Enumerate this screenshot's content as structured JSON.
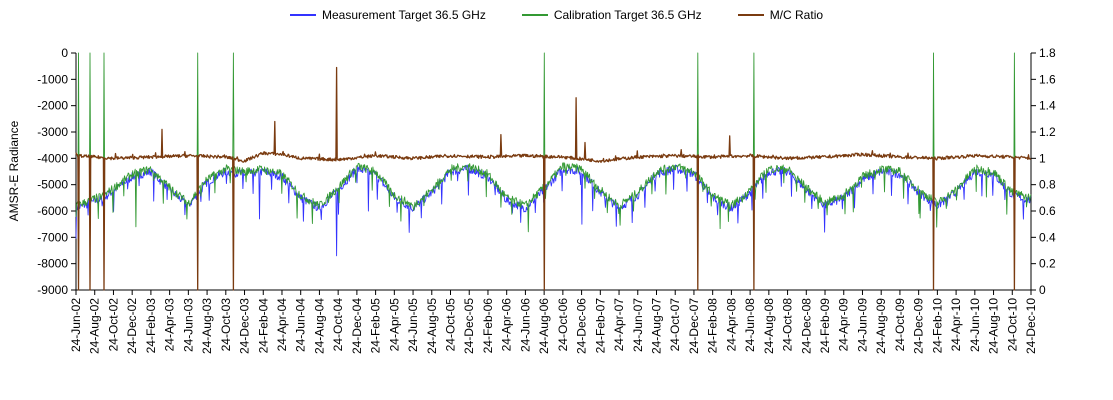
{
  "chart_data": {
    "type": "line",
    "ylabel": "AMSR-E Radiance",
    "y2label": "",
    "ylim": [
      -9000,
      0
    ],
    "y2lim": [
      0,
      1.8
    ],
    "yticks": [
      "0",
      "-1000",
      "-2000",
      "-3000",
      "-4000",
      "-5000",
      "-6000",
      "-7000",
      "-8000",
      "-9000"
    ],
    "y2ticks": [
      "1.8",
      "1.6",
      "1.4",
      "1.2",
      "1",
      "0.8",
      "0.6",
      "0.4",
      "0.2",
      "0"
    ],
    "x_tick_labels": [
      "24-Jun-02",
      "24-Aug-02",
      "24-Oct-02",
      "24-Dec-02",
      "24-Feb-03",
      "24-Apr-03",
      "24-Jun-03",
      "24-Aug-03",
      "24-Oct-03",
      "24-Dec-03",
      "24-Feb-04",
      "24-Apr-04",
      "24-Jun-04",
      "24-Aug-04",
      "24-Oct-04",
      "24-Dec-04",
      "24-Feb-05",
      "24-Apr-05",
      "24-Jun-05",
      "24-Aug-05",
      "24-Oct-05",
      "24-Dec-05",
      "24-Feb-06",
      "24-Apr-06",
      "24-Jun-06",
      "24-Aug-06",
      "24-Oct-06",
      "24-Dec-06",
      "24-Feb-07",
      "24-Apr-07",
      "24-Jun-07",
      "24-Aug-07",
      "24-Oct-07",
      "24-Dec-07",
      "24-Feb-08",
      "24-Apr-08",
      "24-Jun-08",
      "24-Aug-08",
      "24-Oct-08",
      "24-Dec-08",
      "24-Feb-09",
      "24-Apr-09",
      "24-Jun-09",
      "24-Aug-09",
      "24-Oct-09",
      "24-Dec-09",
      "24-Feb-10",
      "24-Apr-10",
      "24-Jun-10",
      "24-Aug-10",
      "24-Oct-10",
      "24-Dec-10"
    ],
    "grid": false,
    "legend_position": "top-center",
    "series": [
      {
        "name": "Measurement Target 36.5 GHz",
        "axis": "left",
        "color": "#3333ff",
        "baseline": [
          [
            0,
            -5900
          ],
          [
            1.5,
            -5500
          ],
          [
            3,
            -4700
          ],
          [
            4,
            -4500
          ],
          [
            5,
            -5200
          ],
          [
            6,
            -5800
          ],
          [
            7,
            -4900
          ],
          [
            8,
            -4500
          ],
          [
            9,
            -4600
          ],
          [
            10,
            -4500
          ],
          [
            11,
            -4700
          ],
          [
            12,
            -5500
          ],
          [
            13,
            -5900
          ],
          [
            14,
            -5200
          ],
          [
            15,
            -4400
          ],
          [
            16,
            -4600
          ],
          [
            17,
            -5500
          ],
          [
            18,
            -5900
          ],
          [
            19,
            -5300
          ],
          [
            20,
            -4500
          ],
          [
            21,
            -4400
          ],
          [
            22,
            -4700
          ],
          [
            23,
            -5600
          ],
          [
            24,
            -5900
          ],
          [
            25,
            -5200
          ],
          [
            26,
            -4400
          ],
          [
            27,
            -4500
          ],
          [
            28,
            -5300
          ],
          [
            29,
            -5900
          ],
          [
            30,
            -5400
          ],
          [
            31,
            -4600
          ],
          [
            32,
            -4400
          ],
          [
            33,
            -4600
          ],
          [
            34,
            -5500
          ],
          [
            35,
            -5900
          ],
          [
            36,
            -5300
          ],
          [
            37,
            -4500
          ],
          [
            38,
            -4500
          ],
          [
            39,
            -5200
          ],
          [
            40,
            -5800
          ],
          [
            41,
            -5500
          ],
          [
            42,
            -4800
          ],
          [
            43,
            -4500
          ],
          [
            44,
            -4600
          ],
          [
            45,
            -5300
          ],
          [
            46,
            -5800
          ],
          [
            47,
            -5300
          ],
          [
            48,
            -4500
          ],
          [
            49,
            -4600
          ],
          [
            50,
            -5400
          ],
          [
            51,
            -5600
          ]
        ],
        "spikes": [
          [
            13.9,
            -7700
          ],
          [
            27.0,
            -6500
          ],
          [
            9.8,
            -6300
          ],
          [
            15.6,
            -6000
          ]
        ]
      },
      {
        "name": "Calibration Target 36.5 GHz",
        "axis": "left",
        "color": "#339933",
        "baseline": [
          [
            0,
            -5800
          ],
          [
            1.5,
            -5400
          ],
          [
            3,
            -4600
          ],
          [
            4,
            -4400
          ],
          [
            5,
            -5100
          ],
          [
            6,
            -5700
          ],
          [
            7,
            -4800
          ],
          [
            8,
            -4400
          ],
          [
            9,
            -4500
          ],
          [
            10,
            -4400
          ],
          [
            11,
            -4600
          ],
          [
            12,
            -5400
          ],
          [
            13,
            -5800
          ],
          [
            14,
            -5100
          ],
          [
            15,
            -4300
          ],
          [
            16,
            -4500
          ],
          [
            17,
            -5400
          ],
          [
            18,
            -5800
          ],
          [
            19,
            -5200
          ],
          [
            20,
            -4400
          ],
          [
            21,
            -4300
          ],
          [
            22,
            -4600
          ],
          [
            23,
            -5500
          ],
          [
            24,
            -5800
          ],
          [
            25,
            -5100
          ],
          [
            26,
            -4300
          ],
          [
            27,
            -4400
          ],
          [
            28,
            -5200
          ],
          [
            29,
            -5800
          ],
          [
            30,
            -5300
          ],
          [
            31,
            -4500
          ],
          [
            32,
            -4300
          ],
          [
            33,
            -4500
          ],
          [
            34,
            -5400
          ],
          [
            35,
            -5800
          ],
          [
            36,
            -5200
          ],
          [
            37,
            -4400
          ],
          [
            38,
            -4400
          ],
          [
            39,
            -5100
          ],
          [
            40,
            -5700
          ],
          [
            41,
            -5400
          ],
          [
            42,
            -4700
          ],
          [
            43,
            -4400
          ],
          [
            44,
            -4500
          ],
          [
            45,
            -5200
          ],
          [
            46,
            -5700
          ],
          [
            47,
            -5200
          ],
          [
            48,
            -4400
          ],
          [
            49,
            -4500
          ],
          [
            50,
            -5300
          ],
          [
            51,
            -5500
          ]
        ],
        "spikes": [
          [
            0.15,
            0
          ],
          [
            0.75,
            0
          ],
          [
            1.5,
            0
          ],
          [
            6.5,
            0
          ],
          [
            8.4,
            0
          ],
          [
            25.0,
            0
          ],
          [
            33.2,
            0
          ],
          [
            36.2,
            0
          ],
          [
            45.8,
            0
          ],
          [
            50.1,
            0
          ],
          [
            3.2,
            -6600
          ],
          [
            29.0,
            -6100
          ],
          [
            45.0,
            -6100
          ]
        ]
      },
      {
        "name": "M/C Ratio",
        "axis": "right",
        "color": "#7a3b10",
        "baseline": [
          [
            0,
            1.02
          ],
          [
            2,
            1.0
          ],
          [
            4,
            1.01
          ],
          [
            6,
            1.02
          ],
          [
            8,
            1.01
          ],
          [
            9,
            0.98
          ],
          [
            10,
            1.04
          ],
          [
            11,
            1.03
          ],
          [
            12,
            1.0
          ],
          [
            14,
            0.99
          ],
          [
            16,
            1.02
          ],
          [
            18,
            1.0
          ],
          [
            20,
            1.02
          ],
          [
            22,
            1.01
          ],
          [
            24,
            1.02
          ],
          [
            26,
            1.01
          ],
          [
            28,
            0.98
          ],
          [
            30,
            1.01
          ],
          [
            32,
            1.02
          ],
          [
            34,
            1.01
          ],
          [
            36,
            1.02
          ],
          [
            38,
            1.0
          ],
          [
            40,
            1.01
          ],
          [
            42,
            1.03
          ],
          [
            44,
            1.01
          ],
          [
            46,
            1.0
          ],
          [
            48,
            1.02
          ],
          [
            50,
            1.01
          ],
          [
            51,
            1.0
          ]
        ],
        "spikes": [
          [
            4.6,
            1.22
          ],
          [
            10.6,
            1.28
          ],
          [
            13.9,
            1.69
          ],
          [
            22.7,
            1.18
          ],
          [
            26.7,
            1.46
          ],
          [
            34.9,
            1.17
          ],
          [
            27.2,
            1.12
          ],
          [
            51.2,
            1.11
          ],
          [
            0.15,
            0
          ],
          [
            0.75,
            0
          ],
          [
            1.5,
            0
          ],
          [
            6.5,
            0
          ],
          [
            8.4,
            0
          ],
          [
            25.0,
            0
          ],
          [
            33.2,
            0
          ],
          [
            36.2,
            0
          ],
          [
            45.8,
            0
          ],
          [
            50.1,
            0
          ]
        ]
      }
    ]
  }
}
